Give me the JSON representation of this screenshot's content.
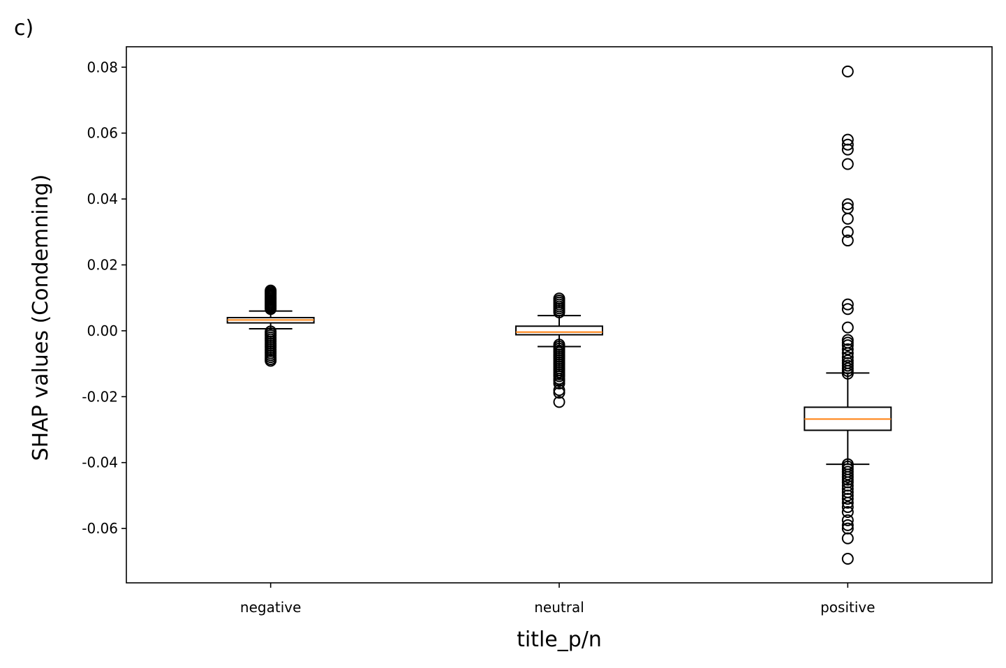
{
  "panel_label": "c)",
  "chart_data": {
    "type": "box",
    "xlabel": "title_p/n",
    "ylabel": "SHAP values (Condemning)",
    "ylim": [
      -0.0765,
      0.0862
    ],
    "yticks": [
      0.08,
      0.06,
      0.04,
      0.02,
      0.0,
      -0.02,
      -0.04,
      -0.06
    ],
    "ytick_labels": [
      "0.08",
      "0.06",
      "0.04",
      "0.02",
      "0.00",
      "-0.02",
      "-0.04",
      "-0.06"
    ],
    "grid": false,
    "categories": [
      "negative",
      "neutral",
      "positive"
    ],
    "boxes": [
      {
        "category": "negative",
        "whisker_low": 0.0006,
        "q1": 0.0024,
        "median": 0.0033,
        "q3": 0.004,
        "whisker_high": 0.006,
        "outliers": [
          0.0122,
          0.0118,
          0.0114,
          0.011,
          0.0106,
          0.0102,
          0.0098,
          0.0094,
          0.009,
          0.0086,
          0.0082,
          0.0078,
          0.0074,
          0.007,
          0.0066,
          -0.0002,
          -0.0008,
          -0.0014,
          -0.002,
          -0.0026,
          -0.0032,
          -0.0038,
          -0.0044,
          -0.005,
          -0.0056,
          -0.0062,
          -0.0068,
          -0.0074,
          -0.008,
          -0.0086,
          -0.0091
        ]
      },
      {
        "category": "neutral",
        "whisker_low": -0.0048,
        "q1": -0.0012,
        "median": -0.0004,
        "q3": 0.0014,
        "whisker_high": 0.0046,
        "outliers": [
          0.0098,
          0.0092,
          0.0086,
          0.008,
          0.0074,
          0.0068,
          0.0062,
          0.0056,
          -0.0042,
          -0.0048,
          -0.0054,
          -0.006,
          -0.0066,
          -0.0072,
          -0.0078,
          -0.0084,
          -0.009,
          -0.0096,
          -0.0102,
          -0.0108,
          -0.0114,
          -0.012,
          -0.0126,
          -0.0132,
          -0.0138,
          -0.0146,
          -0.0152,
          -0.016,
          -0.018,
          -0.0188,
          -0.0216
        ]
      },
      {
        "category": "positive",
        "whisker_low": -0.0405,
        "q1": -0.0302,
        "median": -0.0268,
        "q3": -0.0232,
        "whisker_high": -0.0128,
        "outliers": [
          0.0787,
          0.058,
          0.0565,
          0.055,
          0.0506,
          0.0384,
          0.0372,
          0.034,
          0.03,
          0.0274,
          0.008,
          0.0066,
          0.001,
          -0.0028,
          -0.0036,
          -0.0044,
          -0.0056,
          -0.0068,
          -0.008,
          -0.009,
          -0.0098,
          -0.0106,
          -0.0114,
          -0.0122,
          -0.013,
          -0.0405,
          -0.0412,
          -0.042,
          -0.0428,
          -0.0436,
          -0.0444,
          -0.0452,
          -0.046,
          -0.047,
          -0.048,
          -0.049,
          -0.05,
          -0.051,
          -0.0522,
          -0.0535,
          -0.055,
          -0.0575,
          -0.059,
          -0.06,
          -0.063,
          -0.0692
        ]
      }
    ],
    "colors": {
      "box": "#000000",
      "median": "#ff7f0e",
      "outlier": "#000000"
    }
  }
}
